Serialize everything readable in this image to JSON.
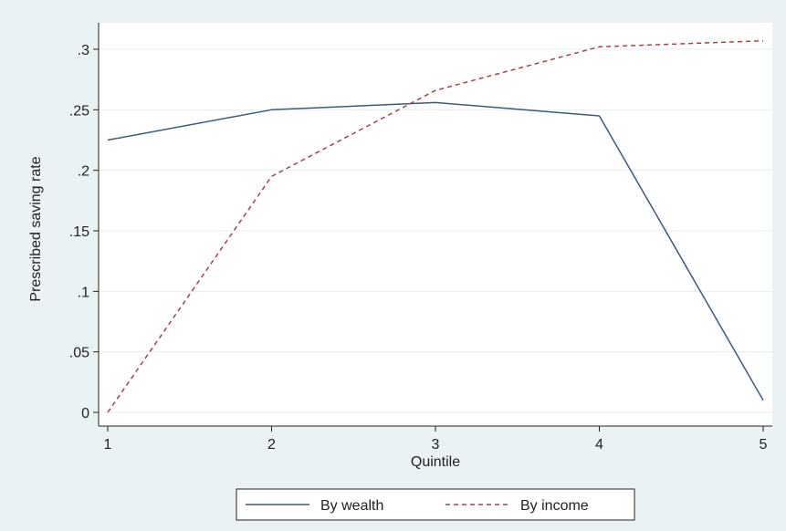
{
  "chart_data": {
    "type": "line",
    "title": "",
    "xlabel": "Quintile",
    "ylabel": "Prescribed saving rate",
    "x": [
      1,
      2,
      3,
      4,
      5
    ],
    "xticks": [
      "1",
      "2",
      "3",
      "4",
      "5"
    ],
    "yticks": [
      "0",
      ".05",
      ".1",
      ".15",
      ".2",
      ".25",
      ".3"
    ],
    "xlim": [
      1,
      5
    ],
    "ylim": [
      0,
      0.3
    ],
    "grid": "horizontal",
    "legend_position": "bottom",
    "series": [
      {
        "name": "By wealth",
        "values": [
          0.225,
          0.25,
          0.256,
          0.245,
          0.01
        ],
        "color": "#3a5a7c",
        "style": "solid"
      },
      {
        "name": "By income",
        "values": [
          0.0,
          0.195,
          0.266,
          0.302,
          0.307
        ],
        "color": "#a7404a",
        "style": "dashed"
      }
    ]
  }
}
